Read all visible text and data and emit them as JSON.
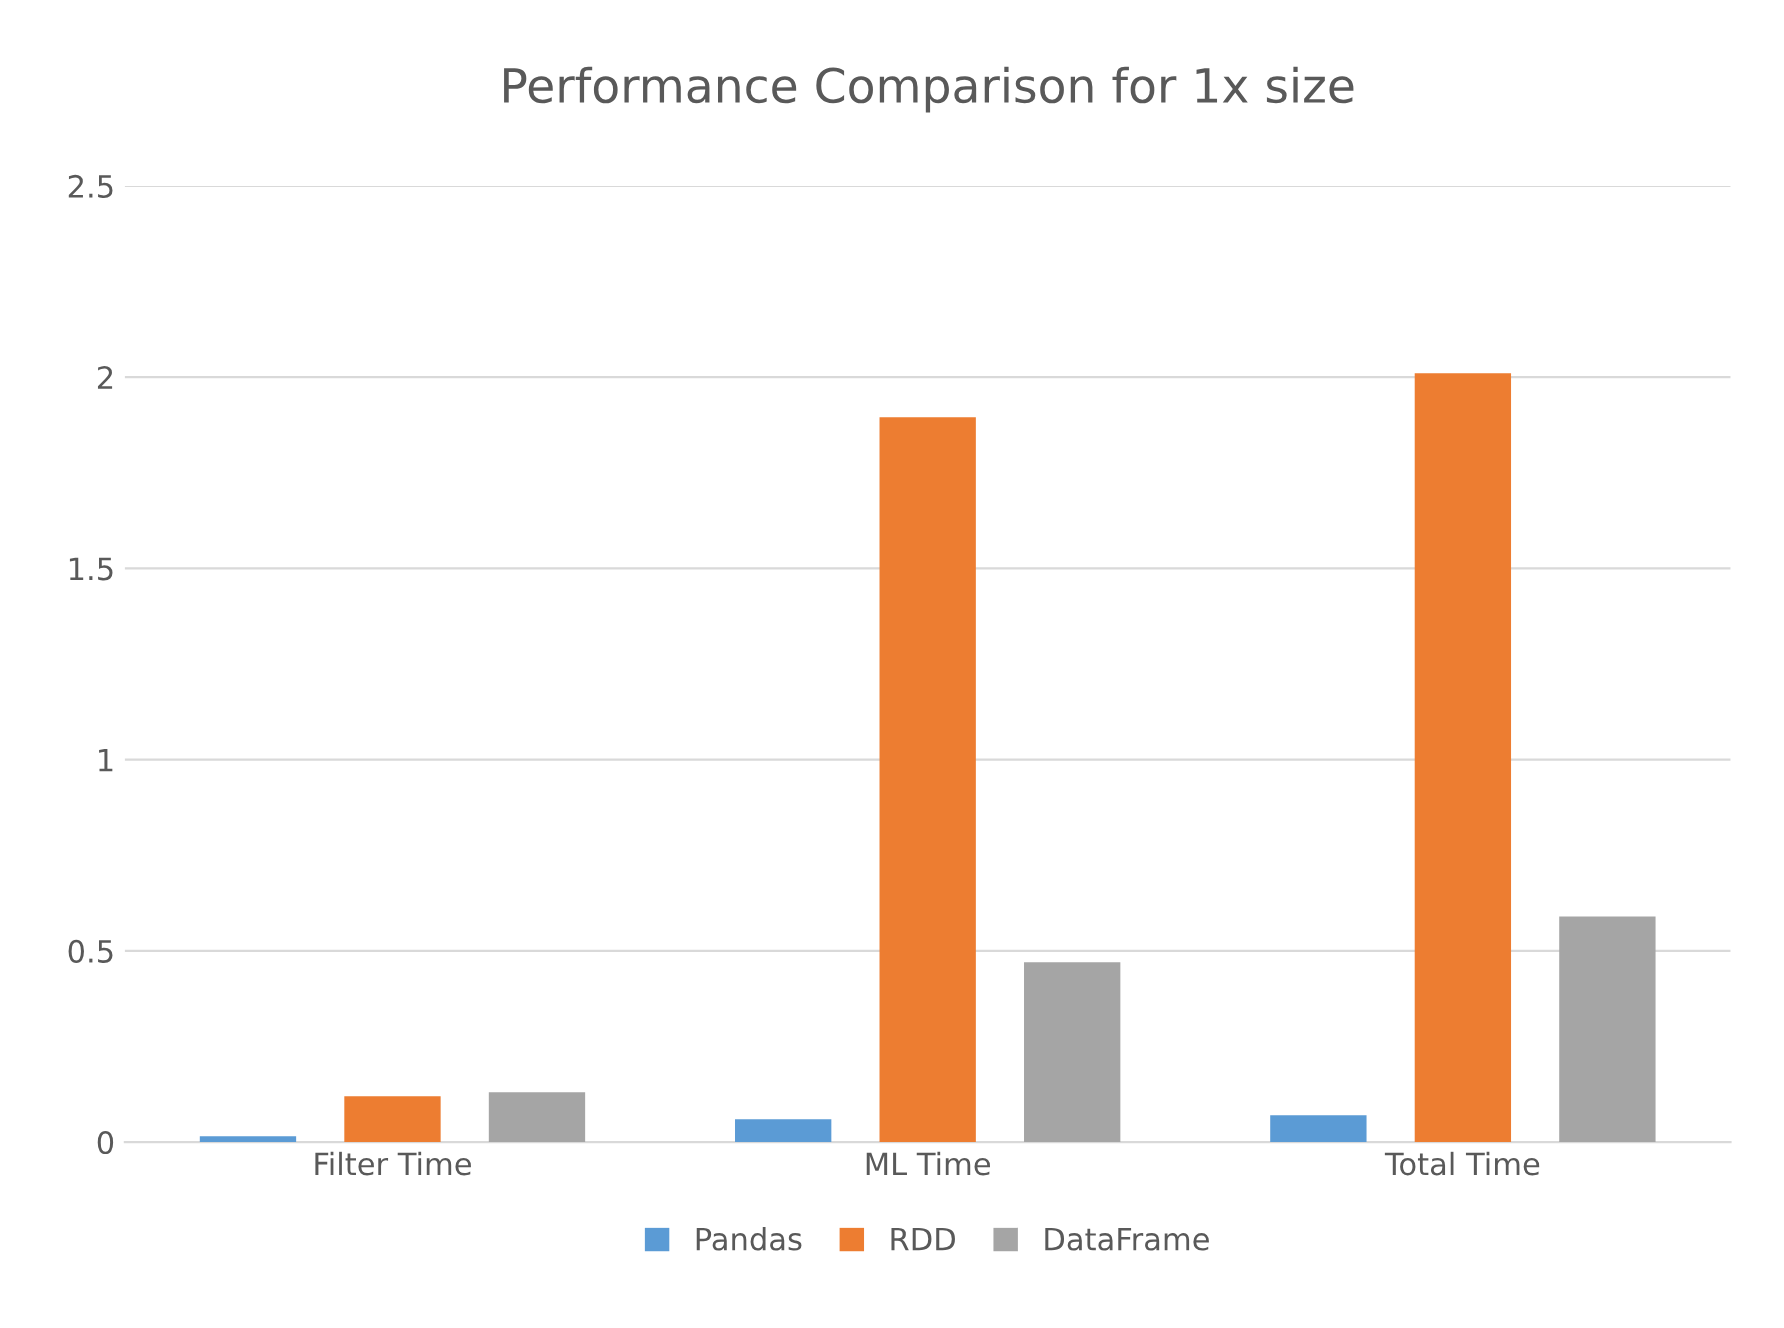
{
  "chart_data": {
    "type": "bar",
    "title": "Performance Comparison for 1x size",
    "categories": [
      "Filter Time",
      "ML Time",
      "Total Time"
    ],
    "series": [
      {
        "name": "Pandas",
        "color": "#5b9bd5",
        "values": [
          0.015,
          0.06,
          0.07
        ]
      },
      {
        "name": "RDD",
        "color": "#ed7d31",
        "values": [
          0.12,
          1.895,
          2.01
        ]
      },
      {
        "name": "DataFrame",
        "color": "#a5a5a5",
        "values": [
          0.13,
          0.47,
          0.59
        ]
      }
    ],
    "ylim": [
      0,
      2.5
    ],
    "yticks": [
      0,
      0.5,
      1,
      1.5,
      2,
      2.5
    ],
    "grid": "y",
    "legend": "bottom"
  }
}
